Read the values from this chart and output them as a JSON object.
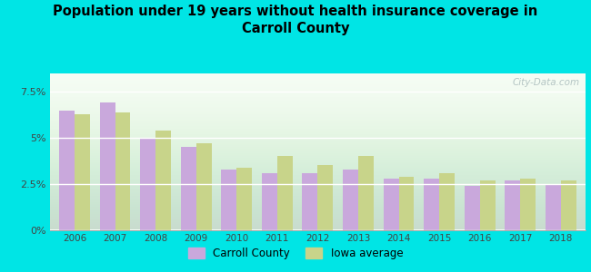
{
  "title": "Population under 19 years without health insurance coverage in\nCarroll County",
  "years": [
    2006,
    2007,
    2008,
    2009,
    2010,
    2011,
    2012,
    2013,
    2014,
    2015,
    2016,
    2017,
    2018
  ],
  "carroll_county": [
    6.5,
    6.9,
    5.0,
    4.5,
    3.3,
    3.1,
    3.1,
    3.3,
    2.8,
    2.8,
    2.4,
    2.7,
    2.5
  ],
  "iowa_average": [
    6.3,
    6.4,
    5.4,
    4.7,
    3.4,
    4.0,
    3.5,
    4.0,
    2.9,
    3.1,
    2.7,
    2.8,
    2.7
  ],
  "bar_color_carroll": "#c9a8dc",
  "bar_color_iowa": "#c8d48a",
  "background_outer": "#00e5e5",
  "background_inner_top": "#f0faf8",
  "background_inner_bot": "#d0ebd8",
  "ylim": [
    0,
    8.5
  ],
  "yticks": [
    0,
    2.5,
    5.0,
    7.5
  ],
  "ytick_labels": [
    "0%",
    "2.5%",
    "5%",
    "7.5%"
  ],
  "legend_carroll": "Carroll County",
  "legend_iowa": "Iowa average",
  "watermark": "City-Data.com",
  "bar_width": 0.38
}
